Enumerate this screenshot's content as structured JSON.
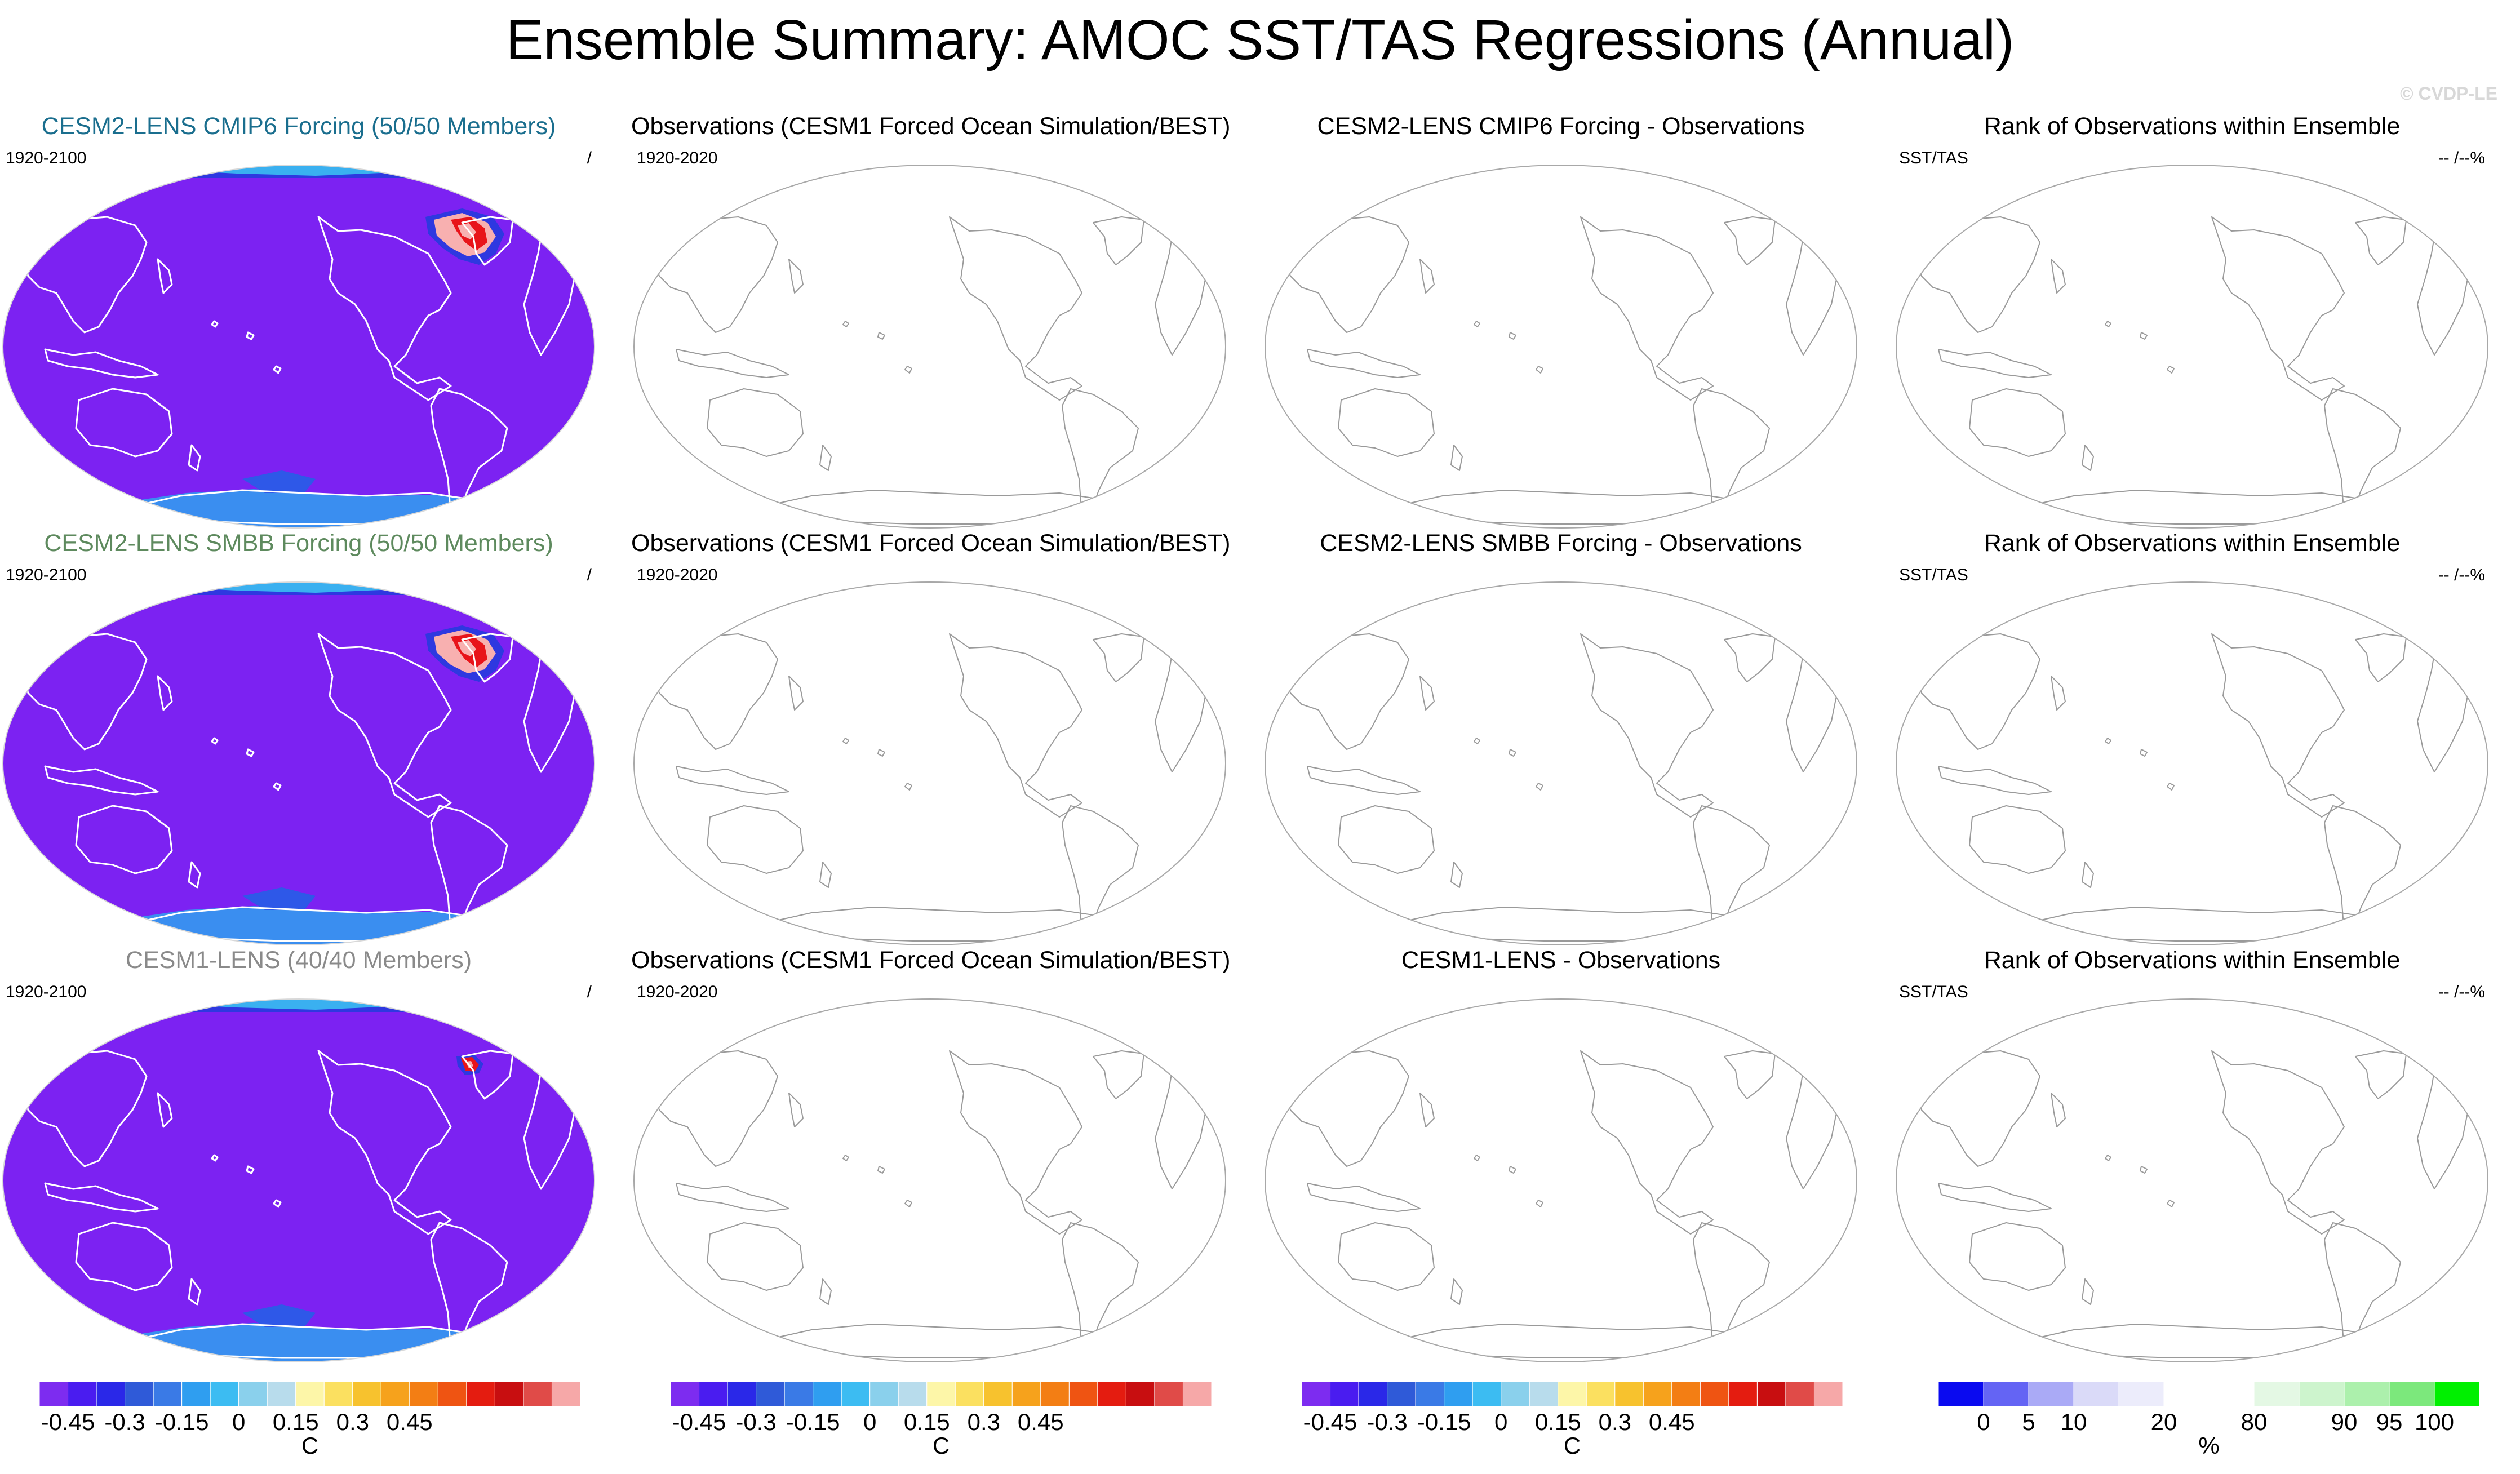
{
  "page_title": "Ensemble Summary: AMOC SST/TAS Regressions (Annual)",
  "watermark": "© CVDP-LE",
  "colors": {
    "ocean_fill": "#7c22f2",
    "ocean_edge": "#2e38e0",
    "antarctic_light": "#3a8ef0",
    "hot_core": "#e8141a",
    "hot_mid": "#f8b0b0",
    "cmip6_title": "#1a6e8e",
    "smbb_title": "#5e8a5e",
    "cesm1_title": "#8a8a8a",
    "coast_on_fill": "#ffffff",
    "coast_blank": "#9a9a9a"
  },
  "rows": [
    {
      "model": {
        "title": "CESM2-LENS CMIP6 Forcing (50/50 Members)",
        "title_color": "#1a6e8e",
        "left_label": "1920-2100",
        "right_label": "/",
        "hotspot": "large"
      },
      "observations": {
        "title": "Observations (CESM1 Forced Ocean Simulation/BEST)",
        "left_label": "1920-2020"
      },
      "difference": {
        "title": "CESM2-LENS CMIP6 Forcing - Observations"
      },
      "rank": {
        "title": "Rank of Observations within Ensemble",
        "left_label": "SST/TAS",
        "right_label": "-- /--%"
      }
    },
    {
      "model": {
        "title": "CESM2-LENS SMBB Forcing (50/50 Members)",
        "title_color": "#5e8a5e",
        "left_label": "1920-2100",
        "right_label": "/",
        "hotspot": "large"
      },
      "observations": {
        "title": "Observations (CESM1 Forced Ocean Simulation/BEST)",
        "left_label": "1920-2020"
      },
      "difference": {
        "title": "CESM2-LENS SMBB Forcing - Observations"
      },
      "rank": {
        "title": "Rank of Observations within Ensemble",
        "left_label": "SST/TAS",
        "right_label": "-- /--%"
      }
    },
    {
      "model": {
        "title": "CESM1-LENS (40/40 Members)",
        "title_color": "#8a8a8a",
        "left_label": "1920-2100",
        "right_label": "/",
        "hotspot": "small"
      },
      "observations": {
        "title": "Observations (CESM1 Forced Ocean Simulation/BEST)",
        "left_label": "1920-2020"
      },
      "difference": {
        "title": "CESM1-LENS - Observations"
      },
      "rank": {
        "title": "Rank of Observations within Ensemble",
        "left_label": "SST/TAS",
        "right_label": "-- /--%"
      }
    }
  ],
  "colorbars": [
    {
      "kind": "temperature",
      "unit": "C",
      "colors": [
        "#7d2cf0",
        "#4a1cf0",
        "#2a28e8",
        "#2f5ad8",
        "#3a7ae6",
        "#2f9ef0",
        "#3cbcf2",
        "#8ad0ec",
        "#b8dcec",
        "#fdf6a8",
        "#fbe060",
        "#f7c22e",
        "#f6a21c",
        "#f37e14",
        "#ef5412",
        "#e41c10",
        "#c80e10",
        "#e04b48",
        "#f6a8a8"
      ],
      "tick_labels": [
        "-0.45",
        "-0.3",
        "-0.15",
        "0",
        "0.15",
        "0.3",
        "0.45"
      ],
      "tick_boundaries": [
        1,
        3,
        5,
        7,
        9,
        11,
        13
      ]
    },
    {
      "kind": "temperature",
      "unit": "C",
      "colors": [
        "#7d2cf0",
        "#4a1cf0",
        "#2a28e8",
        "#2f5ad8",
        "#3a7ae6",
        "#2f9ef0",
        "#3cbcf2",
        "#8ad0ec",
        "#b8dcec",
        "#fdf6a8",
        "#fbe060",
        "#f7c22e",
        "#f6a21c",
        "#f37e14",
        "#ef5412",
        "#e41c10",
        "#c80e10",
        "#e04b48",
        "#f6a8a8"
      ],
      "tick_labels": [
        "-0.45",
        "-0.3",
        "-0.15",
        "0",
        "0.15",
        "0.3",
        "0.45"
      ],
      "tick_boundaries": [
        1,
        3,
        5,
        7,
        9,
        11,
        13
      ]
    },
    {
      "kind": "temperature",
      "unit": "C",
      "colors": [
        "#7d2cf0",
        "#4a1cf0",
        "#2a28e8",
        "#2f5ad8",
        "#3a7ae6",
        "#2f9ef0",
        "#3cbcf2",
        "#8ad0ec",
        "#b8dcec",
        "#fdf6a8",
        "#fbe060",
        "#f7c22e",
        "#f6a21c",
        "#f37e14",
        "#ef5412",
        "#e41c10",
        "#c80e10",
        "#e04b48",
        "#f6a8a8"
      ],
      "tick_labels": [
        "-0.45",
        "-0.3",
        "-0.15",
        "0",
        "0.15",
        "0.3",
        "0.45"
      ],
      "tick_boundaries": [
        1,
        3,
        5,
        7,
        9,
        11,
        13
      ]
    },
    {
      "kind": "rank",
      "unit": "%",
      "colors": [
        "#0a0af0",
        "#6464f4",
        "#aaaaf6",
        "#dadaf8",
        "#ececfb",
        "#ffffff",
        "#ffffff",
        "#e4f8e4",
        "#cdf4cd",
        "#acf0ac",
        "#7ce87c",
        "#00f000"
      ],
      "tick_labels": [
        "0",
        "5",
        "10",
        "20",
        "80",
        "90",
        "95",
        "100"
      ],
      "tick_boundaries": [
        1,
        2,
        3,
        5,
        7,
        9,
        10,
        11
      ]
    }
  ]
}
